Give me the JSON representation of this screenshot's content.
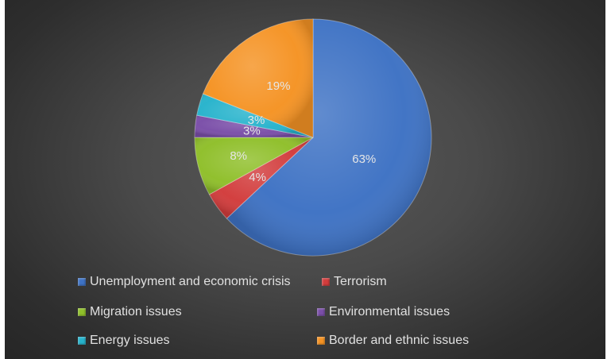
{
  "chart_data": {
    "type": "pie",
    "categories": [
      "Unemployment and economic crisis",
      "Terrorism",
      "Migration issues",
      "Environmental issues",
      "Energy issues",
      "Border and ethnic issues"
    ],
    "values": [
      63,
      4,
      8,
      3,
      3,
      19
    ],
    "data_labels": [
      "63%",
      "4%",
      "8%",
      "3%",
      "3%",
      "19%"
    ],
    "colors": [
      "#3e72c4",
      "#d23c3c",
      "#8fbf2a",
      "#7a4ea8",
      "#27b3cc",
      "#f59324"
    ],
    "start_angle_deg": 0,
    "direction": "clockwise",
    "legend_position": "bottom",
    "title": ""
  }
}
